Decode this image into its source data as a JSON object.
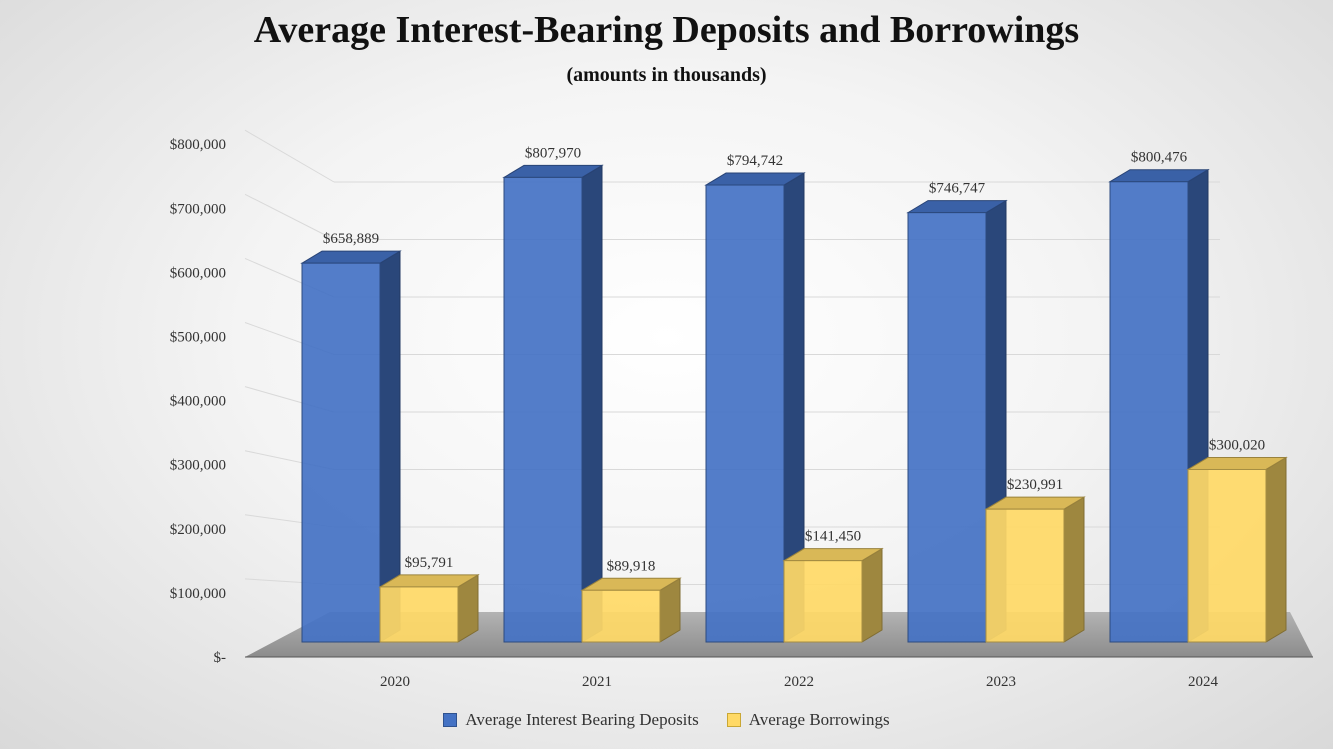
{
  "chart_data": {
    "type": "bar",
    "title": "Average Interest-Bearing Deposits and Borrowings",
    "subtitle": "(amounts in thousands)",
    "categories": [
      "2020",
      "2021",
      "2022",
      "2023",
      "2024"
    ],
    "series": [
      {
        "name": "Average Interest Bearing Deposits",
        "values": [
          658889,
          807970,
          794742,
          746747,
          800476
        ],
        "labels": [
          "$658,889",
          "$807,970",
          "$794,742",
          "$746,747",
          "$800,476"
        ],
        "color": "#4472C4"
      },
      {
        "name": "Average Borrowings",
        "values": [
          95791,
          89918,
          141450,
          230991,
          300020
        ],
        "labels": [
          "$95,791",
          "$89,918",
          "$141,450",
          "$230,991",
          "$300,020"
        ],
        "color": "#FFD966"
      }
    ],
    "yticks": [
      "$-",
      "$100,000",
      "$200,000",
      "$300,000",
      "$400,000",
      "$500,000",
      "$600,000",
      "$700,000",
      "$800,000"
    ],
    "ylim": [
      0,
      800000
    ],
    "grid": true,
    "legend_position": "bottom"
  }
}
